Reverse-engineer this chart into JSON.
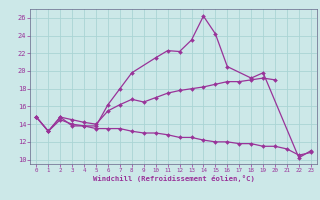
{
  "xlabel": "Windchill (Refroidissement éolien,°C)",
  "xlim": [
    -0.5,
    23.5
  ],
  "ylim": [
    9.5,
    27
  ],
  "yticks": [
    10,
    12,
    14,
    16,
    18,
    20,
    22,
    24,
    26
  ],
  "xticks": [
    0,
    1,
    2,
    3,
    4,
    5,
    6,
    7,
    8,
    9,
    10,
    11,
    12,
    13,
    14,
    15,
    16,
    17,
    18,
    19,
    20,
    21,
    22,
    23
  ],
  "bg_color": "#cce8e8",
  "line_color": "#993399",
  "grid_color": "#aad4d4",
  "series": [
    {
      "x": [
        0,
        1,
        2,
        3,
        4,
        5,
        6,
        7,
        8,
        10,
        11,
        12,
        13,
        14,
        15,
        16,
        18,
        19,
        22,
        23
      ],
      "y": [
        14.8,
        13.2,
        14.8,
        13.8,
        13.8,
        13.8,
        16.2,
        18.0,
        19.8,
        21.5,
        22.3,
        22.2,
        23.5,
        26.2,
        24.2,
        20.5,
        19.2,
        19.8,
        10.2,
        11.0
      ]
    },
    {
      "x": [
        0,
        1,
        2,
        3,
        4,
        5,
        6,
        7,
        8,
        9,
        10,
        11,
        12,
        13,
        14,
        15,
        16,
        17,
        18,
        19,
        20
      ],
      "y": [
        14.8,
        13.2,
        14.8,
        14.5,
        14.2,
        14.0,
        15.5,
        16.2,
        16.8,
        16.5,
        17.0,
        17.5,
        17.8,
        18.0,
        18.2,
        18.5,
        18.8,
        18.8,
        19.0,
        19.2,
        19.0
      ]
    },
    {
      "x": [
        0,
        1,
        2,
        3,
        4,
        5,
        6,
        7,
        8,
        9,
        10,
        11,
        12,
        13,
        14,
        15,
        16,
        17,
        18,
        19,
        20,
        21,
        22,
        23
      ],
      "y": [
        14.8,
        13.2,
        14.5,
        14.0,
        13.8,
        13.5,
        13.5,
        13.5,
        13.2,
        13.0,
        13.0,
        12.8,
        12.5,
        12.5,
        12.2,
        12.0,
        12.0,
        11.8,
        11.8,
        11.5,
        11.5,
        11.2,
        10.5,
        10.8
      ]
    }
  ]
}
